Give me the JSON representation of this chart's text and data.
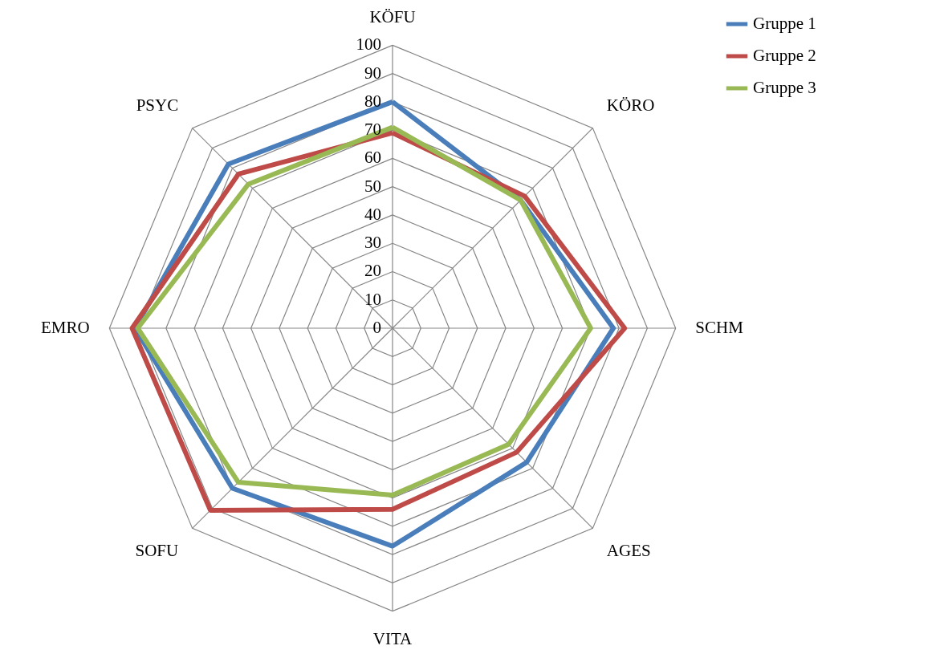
{
  "chart_data": {
    "type": "radar",
    "categories": [
      "KÖFU",
      "KÖRO",
      "SCHM",
      "AGES",
      "VITA",
      "SOFU",
      "EMRO",
      "PSYC"
    ],
    "ylim": [
      0,
      100
    ],
    "yticks": [
      0,
      10,
      20,
      30,
      40,
      50,
      60,
      70,
      80,
      90,
      100
    ],
    "grid": true,
    "legend": "right",
    "series": [
      {
        "name": "Gruppe 1",
        "color": "#4a7ebb",
        "values": [
          80,
          64,
          78,
          67,
          77,
          80,
          91,
          82
        ]
      },
      {
        "name": "Gruppe 2",
        "color": "#be4b48",
        "values": [
          69,
          66,
          82,
          62,
          64,
          91,
          92,
          77
        ]
      },
      {
        "name": "Gruppe 3",
        "color": "#98b954",
        "values": [
          71,
          64,
          70,
          58,
          59,
          77,
          90,
          72
        ]
      }
    ]
  }
}
